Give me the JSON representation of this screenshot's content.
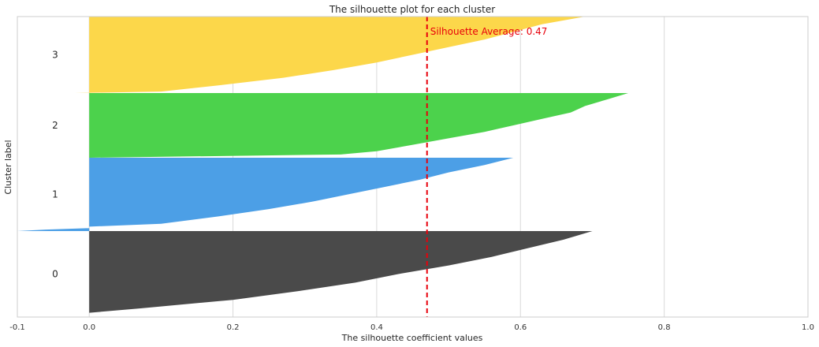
{
  "chart_data": {
    "type": "area",
    "title": "The silhouette plot for each cluster",
    "xlabel": "The silhouette coefficient values",
    "ylabel": "Cluster label",
    "xlim": [
      -0.1,
      1.0
    ],
    "x_ticks": [
      "-0.1",
      "0.0",
      "0.2",
      "0.4",
      "0.6",
      "0.8",
      "1.0"
    ],
    "grid": true,
    "average": {
      "value": 0.47,
      "label": "Silhouette Average: 0.47",
      "color": "#e8000b"
    },
    "clusters": [
      {
        "label": "0",
        "color": "#4a4a4a",
        "silhouette_profile": [
          [
            0.0,
            0.0
          ],
          [
            0.05,
            0.0
          ],
          [
            0.1,
            0.07
          ],
          [
            0.2,
            0.2
          ],
          [
            0.3,
            0.29
          ],
          [
            0.4,
            0.37
          ],
          [
            0.5,
            0.43
          ],
          [
            0.6,
            0.5
          ],
          [
            0.7,
            0.56
          ],
          [
            0.8,
            0.61
          ],
          [
            0.9,
            0.66
          ],
          [
            1.0,
            0.7
          ]
        ]
      },
      {
        "label": "1",
        "color": "#4c9fe6",
        "silhouette_profile": [
          [
            0.0,
            -0.1
          ],
          [
            0.02,
            -0.06
          ],
          [
            0.04,
            0.0
          ],
          [
            0.06,
            0.0
          ],
          [
            0.1,
            0.1
          ],
          [
            0.2,
            0.18
          ],
          [
            0.3,
            0.25
          ],
          [
            0.4,
            0.31
          ],
          [
            0.5,
            0.36
          ],
          [
            0.6,
            0.41
          ],
          [
            0.7,
            0.46
          ],
          [
            0.8,
            0.5
          ],
          [
            0.9,
            0.55
          ],
          [
            1.0,
            0.59
          ]
        ]
      },
      {
        "label": "2",
        "color": "#4cd24c",
        "silhouette_profile": [
          [
            0.0,
            0.0
          ],
          [
            0.05,
            0.35
          ],
          [
            0.1,
            0.4
          ],
          [
            0.2,
            0.45
          ],
          [
            0.3,
            0.5
          ],
          [
            0.4,
            0.55
          ],
          [
            0.5,
            0.59
          ],
          [
            0.6,
            0.63
          ],
          [
            0.7,
            0.67
          ],
          [
            0.8,
            0.69
          ],
          [
            0.9,
            0.72
          ],
          [
            1.0,
            0.75
          ]
        ]
      },
      {
        "label": "3",
        "color": "#fcd74a",
        "silhouette_profile": [
          [
            0.0,
            -0.02
          ],
          [
            0.02,
            0.1
          ],
          [
            0.1,
            0.18
          ],
          [
            0.2,
            0.27
          ],
          [
            0.3,
            0.34
          ],
          [
            0.4,
            0.4
          ],
          [
            0.5,
            0.45
          ],
          [
            0.6,
            0.5
          ],
          [
            0.7,
            0.55
          ],
          [
            0.8,
            0.59
          ],
          [
            0.9,
            0.63
          ],
          [
            1.0,
            0.69
          ]
        ]
      }
    ]
  }
}
